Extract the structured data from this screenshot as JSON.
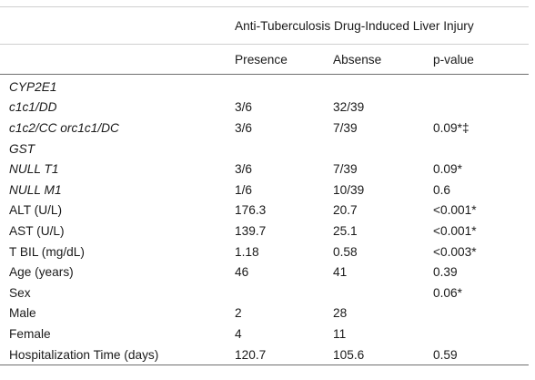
{
  "table": {
    "group_header": "Anti-Tuberculosis Drug-Induced Liver Injury",
    "columns": [
      "Presence",
      "Absense",
      "p-value"
    ],
    "rows": [
      {
        "label": "CYP2E1",
        "presence": "",
        "absence": "",
        "p_value": "",
        "italic": true
      },
      {
        "label": "c1c1/DD",
        "presence": "3/6",
        "absence": "32/39",
        "p_value": "",
        "italic": true
      },
      {
        "label": "c1c2/CC orc1c1/DC",
        "presence": "3/6",
        "absence": "7/39",
        "p_value": "0.09*‡",
        "italic": true
      },
      {
        "label": "GST",
        "presence": "",
        "absence": "",
        "p_value": "",
        "italic": true
      },
      {
        "label": "NULL T1",
        "presence": "3/6",
        "absence": "7/39",
        "p_value": "0.09*",
        "italic": true
      },
      {
        "label": "NULL M1",
        "presence": "1/6",
        "absence": "10/39",
        "p_value": "0.6",
        "italic": true
      },
      {
        "label": "ALT (U/L)",
        "presence": "176.3",
        "absence": "20.7",
        "p_value": "<0.001*",
        "italic": false
      },
      {
        "label": "AST (U/L)",
        "presence": "139.7",
        "absence": "25.1",
        "p_value": "<0.001*",
        "italic": false
      },
      {
        "label": "T BIL (mg/dL)",
        "presence": "1.18",
        "absence": "0.58",
        "p_value": "<0.003*",
        "italic": false
      },
      {
        "label": "Age (years)",
        "presence": "46",
        "absence": "41",
        "p_value": "0.39",
        "italic": false
      },
      {
        "label": "Sex",
        "presence": "",
        "absence": "",
        "p_value": "0.06*",
        "italic": false
      },
      {
        "label": "Male",
        "presence": "2",
        "absence": "28",
        "p_value": "",
        "italic": false
      },
      {
        "label": "Female",
        "presence": "4",
        "absence": "11",
        "p_value": "",
        "italic": false
      },
      {
        "label": "Hospitalization Time (days)",
        "presence": "120.7",
        "absence": "105.6",
        "p_value": "0.59",
        "italic": false
      }
    ]
  }
}
